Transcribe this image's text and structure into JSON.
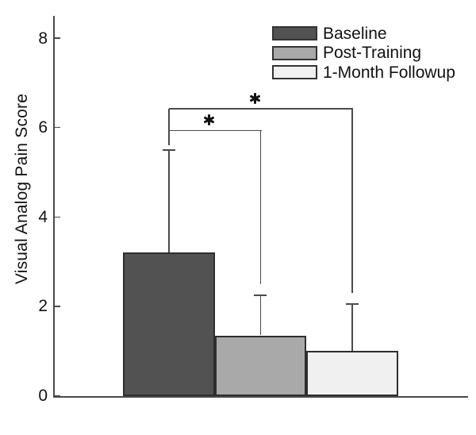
{
  "chart_data": {
    "type": "bar",
    "title": "",
    "xlabel": "",
    "ylabel": "Visual Analog Pain Score",
    "ylim": [
      0,
      8.5
    ],
    "yticks": [
      0,
      2,
      4,
      6,
      8
    ],
    "grid": false,
    "legend_position": "top-right",
    "categories": [
      "Baseline",
      "Post-Training",
      "1-Month Followup"
    ],
    "values": [
      3.2,
      1.35,
      1.0
    ],
    "error_upper": [
      2.3,
      0.9,
      1.05
    ],
    "bar_colors": [
      "#525252",
      "#a9a9a9",
      "#f0f0f0"
    ],
    "bar_border_color": "#2e2e2e",
    "line_color": "#4a4a4a",
    "text_color": "#111111",
    "background_color": "#ffffff",
    "significance_brackets": [
      {
        "label": "*",
        "from": "Baseline",
        "to": "Post-Training",
        "from_index": 0,
        "to_index": 1,
        "level": 5.93
      },
      {
        "label": "*",
        "from": "Baseline",
        "to": "1-Month Followup",
        "from_index": 0,
        "to_index": 2,
        "level": 6.42
      }
    ]
  }
}
